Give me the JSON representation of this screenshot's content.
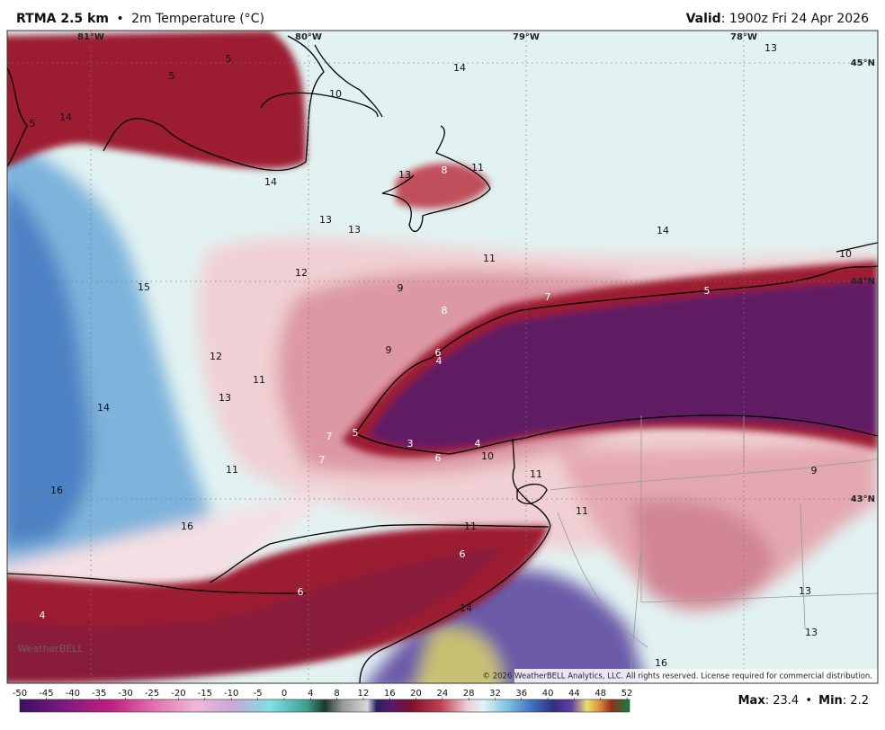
{
  "header": {
    "model": "RTMA 2.5 km",
    "separator": "•",
    "field": "2m Temperature (°C)",
    "valid_label": "Valid",
    "valid_time": ": 1900z Fri 24 Apr 2026"
  },
  "map": {
    "lon_labels": [
      "81°W",
      "80°W",
      "79°W",
      "78°W"
    ],
    "lat_labels": [
      "45°N",
      "44°N",
      "43°N"
    ],
    "station_values": [
      5,
      5,
      10,
      14,
      13,
      5,
      14,
      13,
      8,
      11,
      14,
      13,
      13,
      14,
      11,
      10,
      12,
      15,
      9,
      7,
      5,
      8,
      9,
      6,
      4,
      12,
      11,
      13,
      14,
      7,
      5,
      3,
      4,
      7,
      6,
      10,
      11,
      9,
      11,
      16,
      11,
      16,
      11,
      6,
      6,
      13,
      4,
      14,
      13,
      16
    ],
    "watermark": "WeatherBELL",
    "copyright": "© 2026 WeatherBELL Analytics, LLC. All rights reserved. License required for commercial distribution."
  },
  "colorbar": {
    "ticks": [
      -50,
      -45,
      -40,
      -35,
      -30,
      -25,
      -20,
      -15,
      -10,
      -5,
      0,
      4,
      8,
      12,
      16,
      20,
      24,
      28,
      32,
      36,
      40,
      44,
      48,
      52
    ]
  },
  "footer": {
    "max_label": "Max",
    "max_value": ": 23.4",
    "separator": "•",
    "min_label": "Min",
    "min_value": ": 2.2"
  }
}
